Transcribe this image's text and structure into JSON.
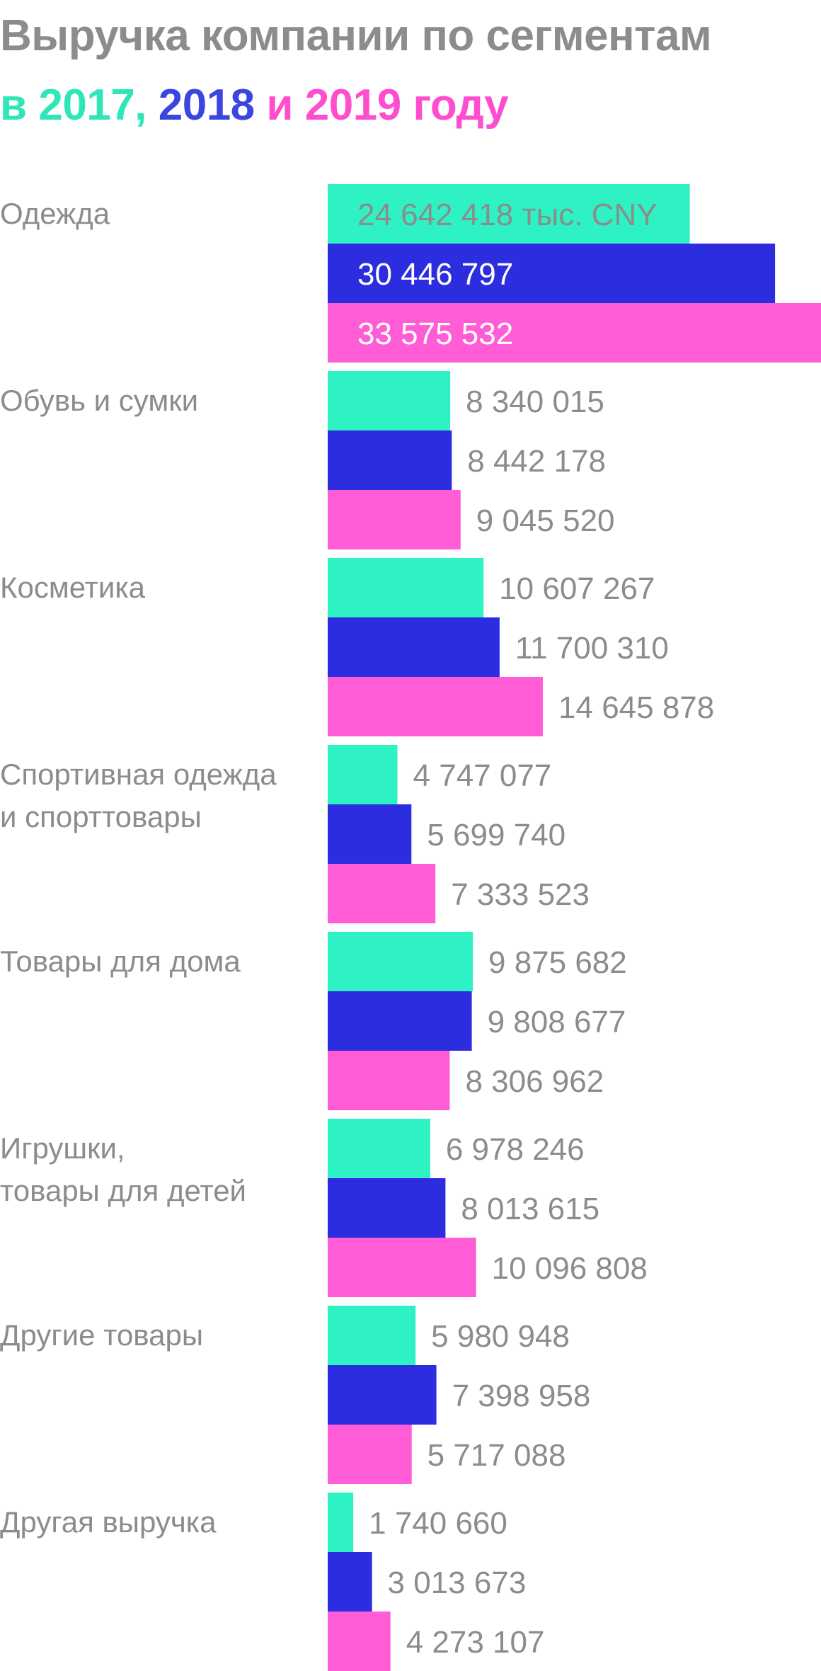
{
  "title": {
    "line1": "Выручка компании по сегментам",
    "prefix": "в ",
    "year1": "2017,",
    "space1": " ",
    "year2": "2018",
    "middle": " и ",
    "year3": "2019 году"
  },
  "colors": {
    "text": "#8c8c8c",
    "s2017": "#2ef2c4",
    "s2018": "#2d2de0",
    "s2019": "#ff5cd6",
    "title_y2017": "#2ee6b8",
    "title_y2018": "#3b46e0",
    "title_y2019": "#ff4dcf"
  },
  "chart_data": {
    "type": "bar",
    "orientation": "horizontal",
    "unit_label": "тыс. CNY",
    "categories": [
      "Одежда",
      "Обувь и сумки",
      "Косметика",
      "Спортивная одежда\nи спорттовары",
      "Товары для дома",
      "Игрушки,\nтовары для детей",
      "Другие товары",
      "Другая выручка"
    ],
    "series": [
      {
        "name": "2017",
        "values": [
          24642418,
          8340015,
          10607267,
          4747077,
          9875682,
          6978246,
          5980948,
          1740660
        ]
      },
      {
        "name": "2018",
        "values": [
          30446797,
          8442178,
          11700310,
          5699740,
          9808677,
          8013615,
          7398958,
          3013673
        ]
      },
      {
        "name": "2019",
        "values": [
          33575532,
          9045520,
          14645878,
          7333523,
          8306962,
          10096808,
          5717088,
          4273107
        ]
      }
    ],
    "value_labels": [
      [
        "24 642 418 тыс. CNY",
        "30 446 797",
        "33 575 532"
      ],
      [
        "8 340 015",
        "8 442 178",
        "9 045 520"
      ],
      [
        "10 607 267",
        "11 700 310",
        "14 645 878"
      ],
      [
        "4 747 077",
        "5 699 740",
        "7 333 523"
      ],
      [
        "9 875 682",
        "9 808 677",
        "8 306 962"
      ],
      [
        "6 978 246",
        "8 013 615",
        "10 096 808"
      ],
      [
        "5 980 948",
        "7 398 958",
        "5 717 088"
      ],
      [
        "1 740 660",
        "3 013 673",
        "4 273 107"
      ]
    ],
    "xlim": [
      0,
      33575532
    ],
    "grid": false
  }
}
